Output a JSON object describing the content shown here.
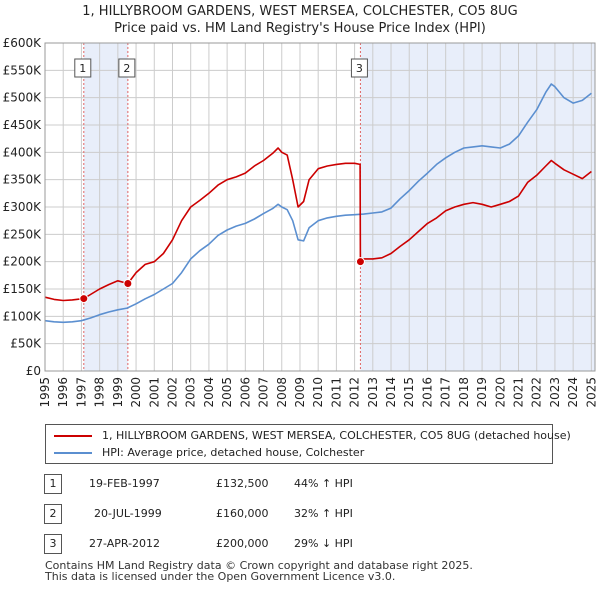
{
  "chart_data": {
    "type": "line",
    "title": "1, HILLYBROOM GARDENS, WEST MERSEA, COLCHESTER, CO5 8UG",
    "subtitle": "Price paid vs. HM Land Registry's House Price Index (HPI)",
    "xlim": [
      1995,
      2025.2
    ],
    "ylim": [
      0,
      600000
    ],
    "x_ticks": [
      1995,
      1996,
      1997,
      1998,
      1999,
      2000,
      2001,
      2002,
      2003,
      2004,
      2005,
      2006,
      2007,
      2008,
      2009,
      2010,
      2011,
      2012,
      2013,
      2014,
      2015,
      2016,
      2017,
      2018,
      2019,
      2020,
      2021,
      2022,
      2023,
      2024,
      2025
    ],
    "x_tick_labels": [
      "1995",
      "1996",
      "1997",
      "1998",
      "1999",
      "2000",
      "2001",
      "2002",
      "2003",
      "2004",
      "2005",
      "2006",
      "2007",
      "2008",
      "2009",
      "2010",
      "2011",
      "2012",
      "2013",
      "2014",
      "2015",
      "2016",
      "2017",
      "2018",
      "2019",
      "2020",
      "2021",
      "2022",
      "2023",
      "2024",
      "2025"
    ],
    "y_ticks": [
      0,
      50000,
      100000,
      150000,
      200000,
      250000,
      300000,
      350000,
      400000,
      450000,
      500000,
      550000,
      600000
    ],
    "y_tick_labels": [
      "£0",
      "£50K",
      "£100K",
      "£150K",
      "£200K",
      "£250K",
      "£300K",
      "£350K",
      "£400K",
      "£450K",
      "£500K",
      "£550K",
      "£600K"
    ],
    "grid": true,
    "shaded_bands": [
      [
        1997.13,
        1999.55
      ]
    ],
    "series": [
      {
        "name": "1, HILLYBROOM GARDENS, WEST MERSEA, COLCHESTER, CO5 8UG (detached house)",
        "color": "#cc0000",
        "x": [
          1995.0,
          1995.5,
          1996.0,
          1996.5,
          1997.13,
          1997.5,
          1998.0,
          1998.5,
          1999.0,
          1999.55,
          2000.0,
          2000.5,
          2001.0,
          2001.5,
          2002.0,
          2002.5,
          2003.0,
          2003.5,
          2004.0,
          2004.5,
          2005.0,
          2005.5,
          2006.0,
          2006.5,
          2007.0,
          2007.5,
          2007.8,
          2008.0,
          2008.3,
          2008.6,
          2008.9,
          2009.2,
          2009.5,
          2010.0,
          2010.5,
          2011.0,
          2011.5,
          2012.0,
          2012.3,
          2012.32,
          2012.5,
          2013.0,
          2013.5,
          2014.0,
          2014.5,
          2015.0,
          2015.5,
          2016.0,
          2016.5,
          2017.0,
          2017.5,
          2018.0,
          2018.5,
          2019.0,
          2019.5,
          2020.0,
          2020.5,
          2021.0,
          2021.5,
          2022.0,
          2022.5,
          2022.8,
          2023.0,
          2023.5,
          2024.0,
          2024.5,
          2025.0
        ],
        "y": [
          135000,
          131000,
          129000,
          130000,
          132500,
          140000,
          150000,
          158000,
          165000,
          160000,
          180000,
          195000,
          200000,
          215000,
          240000,
          275000,
          300000,
          312000,
          325000,
          340000,
          350000,
          355000,
          362000,
          375000,
          385000,
          398000,
          408000,
          400000,
          395000,
          350000,
          300000,
          310000,
          350000,
          370000,
          375000,
          378000,
          380000,
          380000,
          378000,
          200000,
          205000,
          205000,
          207000,
          215000,
          228000,
          240000,
          255000,
          270000,
          280000,
          293000,
          300000,
          305000,
          308000,
          305000,
          300000,
          305000,
          310000,
          320000,
          345000,
          358000,
          375000,
          385000,
          380000,
          368000,
          360000,
          352000,
          365000
        ]
      },
      {
        "name": "HPI: Average price, detached house, Colchester",
        "color": "#5b8fd0",
        "x": [
          1995.0,
          1995.5,
          1996.0,
          1996.5,
          1997.0,
          1997.5,
          1998.0,
          1998.5,
          1999.0,
          1999.5,
          2000.0,
          2000.5,
          2001.0,
          2001.5,
          2002.0,
          2002.5,
          2003.0,
          2003.5,
          2004.0,
          2004.5,
          2005.0,
          2005.5,
          2006.0,
          2006.5,
          2007.0,
          2007.5,
          2007.8,
          2008.0,
          2008.3,
          2008.6,
          2008.9,
          2009.2,
          2009.5,
          2010.0,
          2010.5,
          2011.0,
          2011.5,
          2012.0,
          2012.5,
          2013.0,
          2013.5,
          2014.0,
          2014.5,
          2015.0,
          2015.5,
          2016.0,
          2016.5,
          2017.0,
          2017.5,
          2018.0,
          2018.5,
          2019.0,
          2019.5,
          2020.0,
          2020.5,
          2021.0,
          2021.5,
          2022.0,
          2022.5,
          2022.8,
          2023.0,
          2023.5,
          2024.0,
          2024.5,
          2025.0
        ],
        "y": [
          92000,
          90000,
          89000,
          90000,
          92000,
          97000,
          103000,
          108000,
          112000,
          115000,
          123000,
          132000,
          140000,
          150000,
          160000,
          180000,
          205000,
          220000,
          232000,
          248000,
          258000,
          265000,
          270000,
          278000,
          288000,
          297000,
          305000,
          300000,
          295000,
          275000,
          240000,
          238000,
          262000,
          275000,
          280000,
          283000,
          285000,
          286000,
          287000,
          289000,
          291000,
          298000,
          315000,
          330000,
          347000,
          362000,
          378000,
          390000,
          400000,
          408000,
          410000,
          412000,
          410000,
          408000,
          415000,
          430000,
          455000,
          478000,
          510000,
          525000,
          520000,
          500000,
          490000,
          495000,
          508000
        ]
      }
    ],
    "sales": [
      {
        "num": "1",
        "x": 1997.13,
        "y": 132500
      },
      {
        "num": "2",
        "x": 1999.55,
        "y": 160000
      },
      {
        "num": "3",
        "x": 2012.32,
        "y": 200000
      }
    ]
  },
  "legend": {
    "property": "1, HILLYBROOM GARDENS, WEST MERSEA, COLCHESTER, CO5 8UG (detached house)",
    "hpi": "HPI: Average price, detached house, Colchester"
  },
  "sales_table": [
    {
      "num": "1",
      "date": "19-FEB-1997",
      "price": "£132,500",
      "hpi": "44% ↑ HPI"
    },
    {
      "num": "2",
      "date": "20-JUL-1999",
      "price": "£160,000",
      "hpi": "32% ↑ HPI"
    },
    {
      "num": "3",
      "date": "27-APR-2012",
      "price": "£200,000",
      "hpi": "29% ↓ HPI"
    }
  ],
  "footer": {
    "line1": "Contains HM Land Registry data © Crown copyright and database right 2025.",
    "line2": "This data is licensed under the Open Government Licence v3.0."
  },
  "colors": {
    "property_line": "#cc0000",
    "hpi_line": "#5b8fd0",
    "band": "#e8eefa",
    "grid": "#cccccc"
  }
}
